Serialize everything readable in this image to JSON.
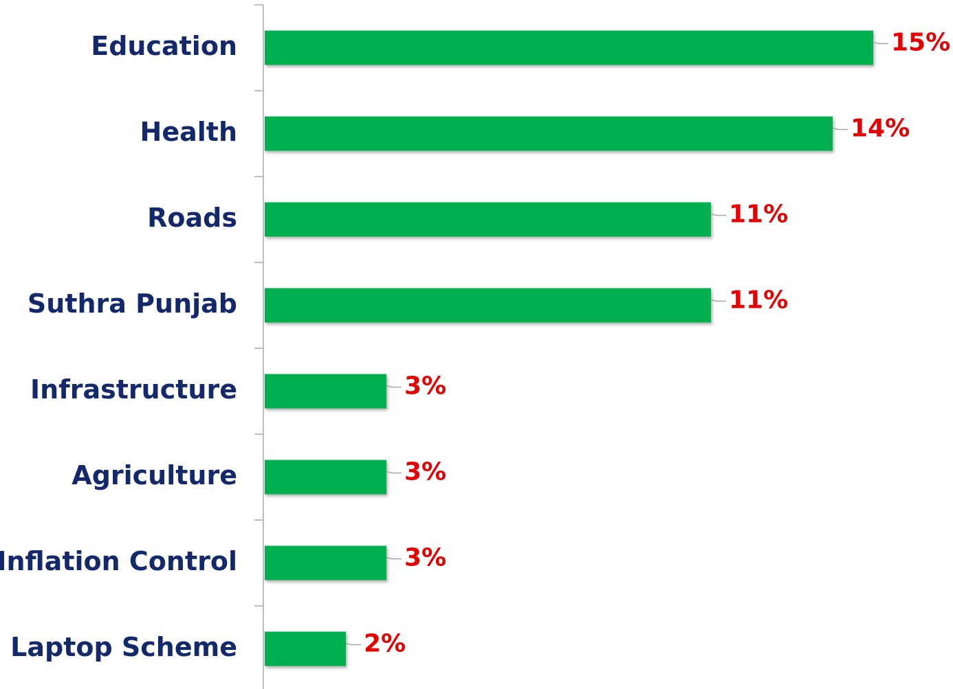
{
  "chart_data": {
    "type": "bar",
    "orientation": "horizontal",
    "categories": [
      "Education",
      "Health",
      "Roads",
      "Suthra Punjab",
      "Infrastructure",
      "Agriculture",
      "Inflation Control",
      "Laptop Scheme"
    ],
    "values": [
      15,
      14,
      11,
      11,
      3,
      3,
      3,
      2
    ],
    "value_labels": [
      "15%",
      "14%",
      "11%",
      "11%",
      "3%",
      "3%",
      "3%",
      "2%"
    ],
    "color": "#00b050",
    "label_color": "#e60000",
    "category_color": "#13296b"
  }
}
